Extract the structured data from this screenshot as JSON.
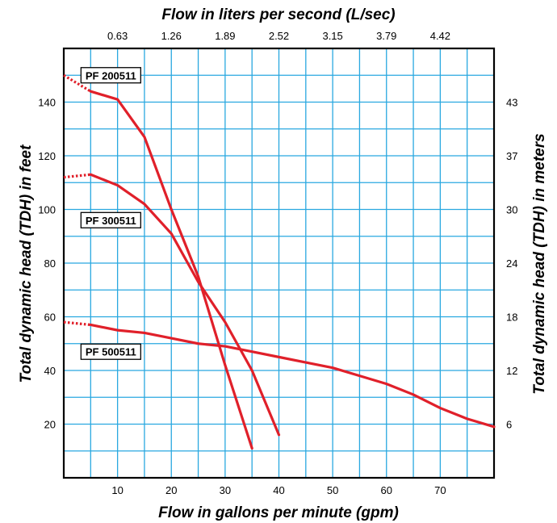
{
  "chart_data": {
    "type": "line",
    "title": "",
    "xlabel": "Flow in gallons per minute (gpm)",
    "x2label": "Flow in liters per second (L/sec)",
    "ylabel": "Total dynamic head (TDH) in feet",
    "y2label": "Total dynamic head (TDH) in meters",
    "xlim": [
      0,
      80
    ],
    "ylim": [
      0,
      160
    ],
    "grid": true,
    "x_ticks": [
      10,
      20,
      30,
      40,
      50,
      60,
      70
    ],
    "y_ticks": [
      20,
      40,
      60,
      80,
      100,
      120,
      140
    ],
    "x2_ticks": [
      {
        "gpm": 10,
        "label": "0.63"
      },
      {
        "gpm": 20,
        "label": "1.26"
      },
      {
        "gpm": 30,
        "label": "1.89"
      },
      {
        "gpm": 40,
        "label": "2.52"
      },
      {
        "gpm": 50,
        "label": "3.15"
      },
      {
        "gpm": 60,
        "label": "3.79"
      },
      {
        "gpm": 70,
        "label": "4.42"
      }
    ],
    "y2_ticks": [
      {
        "feet": 20,
        "label": "6"
      },
      {
        "feet": 40,
        "label": "12"
      },
      {
        "feet": 60,
        "label": "18"
      },
      {
        "feet": 80,
        "label": "24"
      },
      {
        "feet": 100,
        "label": "30"
      },
      {
        "feet": 120,
        "label": "37"
      },
      {
        "feet": 140,
        "label": "43"
      }
    ],
    "series": [
      {
        "name": "PF 200511",
        "color": "#e0202a",
        "dotted": [
          [
            0,
            150
          ],
          [
            5,
            144
          ]
        ],
        "x": [
          5,
          10,
          15,
          20,
          25,
          30,
          35
        ],
        "y": [
          144,
          141,
          127,
          100,
          75,
          42,
          11
        ],
        "label_anchor": [
          3.5,
          150
        ]
      },
      {
        "name": "PF 300511",
        "color": "#e0202a",
        "dotted": [
          [
            0,
            112
          ],
          [
            5,
            113
          ]
        ],
        "x": [
          5,
          10,
          15,
          20,
          25,
          30,
          35,
          40
        ],
        "y": [
          113,
          109,
          102,
          91,
          73,
          58,
          40,
          16
        ],
        "label_anchor": [
          3.5,
          96
        ]
      },
      {
        "name": "PF 500511",
        "color": "#e0202a",
        "dotted": [
          [
            0,
            58
          ],
          [
            5,
            57
          ]
        ],
        "x": [
          5,
          10,
          15,
          20,
          25,
          30,
          35,
          40,
          45,
          50,
          55,
          60,
          65,
          70,
          75,
          80
        ],
        "y": [
          57,
          55,
          54,
          52,
          50,
          49,
          47,
          45,
          43,
          41,
          38,
          35,
          31,
          26,
          22,
          19
        ],
        "label_anchor": [
          3.5,
          47
        ]
      }
    ]
  },
  "colors": {
    "grid": "#29a8e0",
    "curve": "#e0202a",
    "frame": "#000000"
  }
}
